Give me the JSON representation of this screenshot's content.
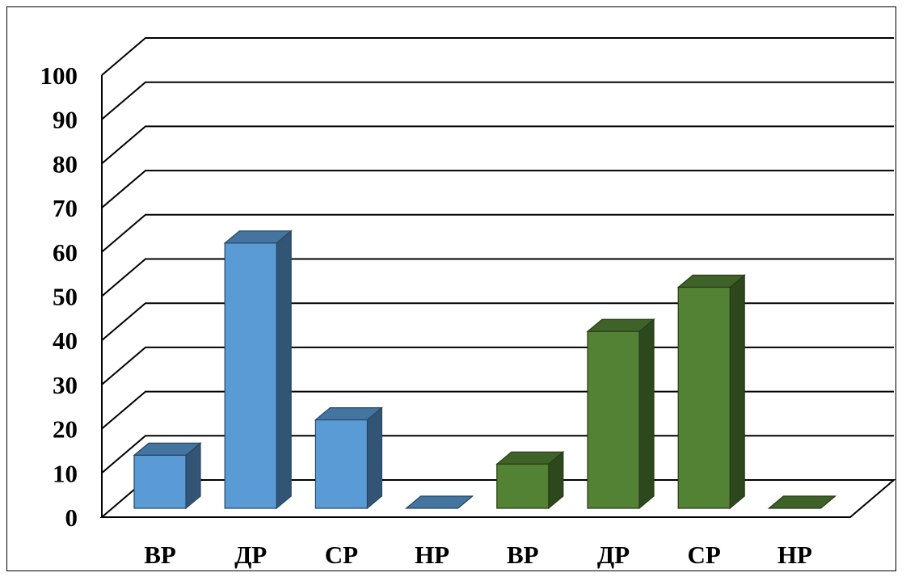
{
  "chart_data": {
    "type": "bar",
    "style": "3d-column",
    "categories": [
      "ВР",
      "ДР",
      "СР",
      "НР",
      "ВР",
      "ДР",
      "СР",
      "НР"
    ],
    "values": [
      12,
      60,
      20,
      0,
      10,
      40,
      50,
      0
    ],
    "series_colors": [
      "#5b9bd5",
      "#5b9bd5",
      "#5b9bd5",
      "#5b9bd5",
      "#548235",
      "#548235",
      "#548235",
      "#548235"
    ],
    "ylim": [
      0,
      100
    ],
    "yticks": [
      0,
      10,
      20,
      30,
      40,
      50,
      60,
      70,
      80,
      90,
      100
    ],
    "grid": true,
    "legend": "none",
    "title": "",
    "xlabel": "",
    "ylabel": ""
  }
}
